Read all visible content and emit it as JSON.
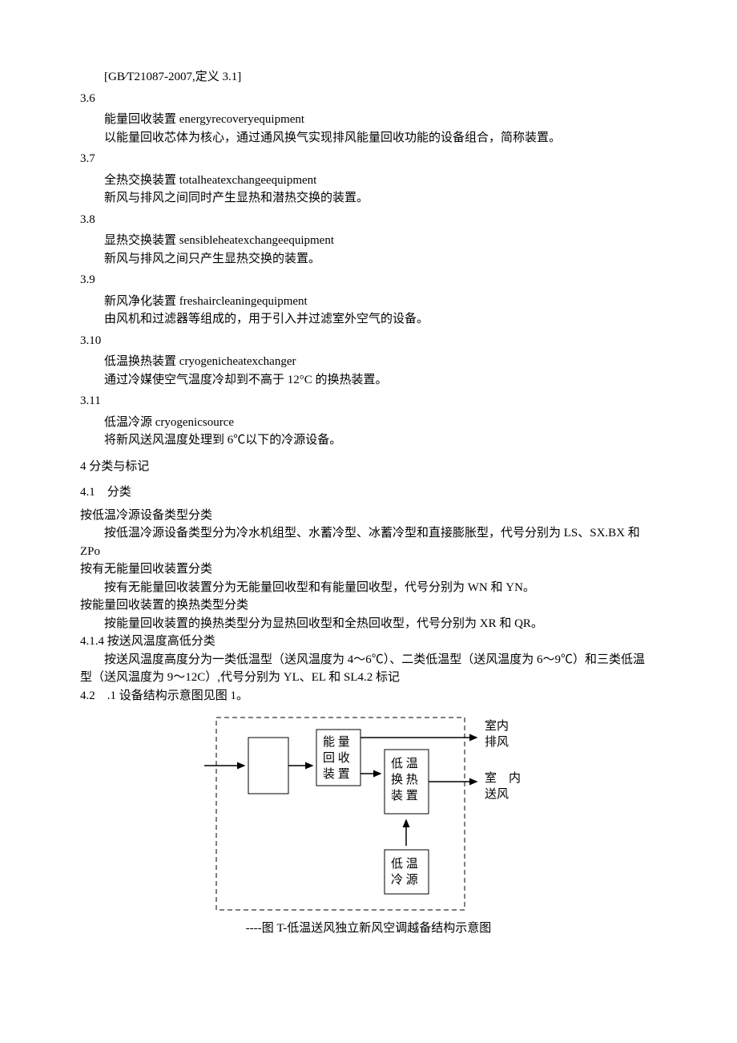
{
  "d35_ref": "[GB∕T21087-2007,定义 3.1]",
  "d36_num": "3.6",
  "d36_title": "能量回收装置 energyrecoveryequipment",
  "d36_def": "以能量回收芯体为核心，通过通风换气实现排风能量回收功能的设备组合，简称装置。",
  "d37_num": "3.7",
  "d37_title": "全热交换装置 totalheatexchangeequipment",
  "d37_def": "新风与排风之间同时产生显热和潜热交换的装置。",
  "d38_num": "3.8",
  "d38_title": "显热交换装置 sensibleheatexchangeequipment",
  "d38_def": "新风与排风之间只产生显热交换的装置。",
  "d39_num": "3.9",
  "d39_title": "新风净化装置 freshaircleaningequipment",
  "d39_def": "由风机和过滤器等组成的，用于引入并过滤室外空气的设备。",
  "d310_num": "3.10",
  "d310_title": "低温换热装置 cryogenicheatexchanger",
  "d310_def": "通过冷媒使空气温度冷却到不高于 12°C 的换热装置。",
  "d311_num": "3.11",
  "d311_title": "低温冷源 cryogenicsource",
  "d311_def": "将新风送风温度处理到 6℃以下的冷源设备。",
  "s4_title": "4 分类与标记",
  "s41_title": "4.1　分类",
  "c1_head": "按低温冷源设备类型分类",
  "c1_body": "按低温冷源设备类型分为冷水机组型、水蓄冷型、冰蓄冷型和直接膨胀型，代号分别为 LS、SX.BX 和",
  "c1_body2": "ZPo",
  "c2_head": "按有无能量回收装置分类",
  "c2_body": "按有无能量回收装置分为无能量回收型和有能量回收型，代号分别为 WN 和 YN。",
  "c3_head": "按能量回收装置的换热类型分类",
  "c3_body": "按能量回收装置的换热类型分为显热回收型和全热回收型，代号分别为 XR 和 QR。",
  "s414_title": "4.1.4 按送风温度高低分类",
  "s414_body1": "按送风温度高度分为一类低温型（送风温度为 4～6℃）、二类低温型（送风温度为 6～9℃）和三类低温",
  "s414_body2": "型（送风温度为 9～12C）,代号分别为 YL、EL 和 SL4.2 标记",
  "s421_title": "4.2　.1 设备结构示意图见图 1。",
  "diagram": {
    "box1_l1": "能 量",
    "box1_l2": "回 收",
    "box1_l3": "装 置",
    "box2_l1": "低 温",
    "box2_l2": "换 热",
    "box2_l3": "装 置",
    "box3_l1": "低 温",
    "box3_l2": "冷 源",
    "label_r1a": "室内",
    "label_r1b": "排风",
    "label_r2a": "室　内",
    "label_r2b": "送风",
    "stroke": "#000000",
    "dash": "6,4",
    "font": "15"
  },
  "caption": "----图 T-低温送风独立新风空调越备结构示意图"
}
